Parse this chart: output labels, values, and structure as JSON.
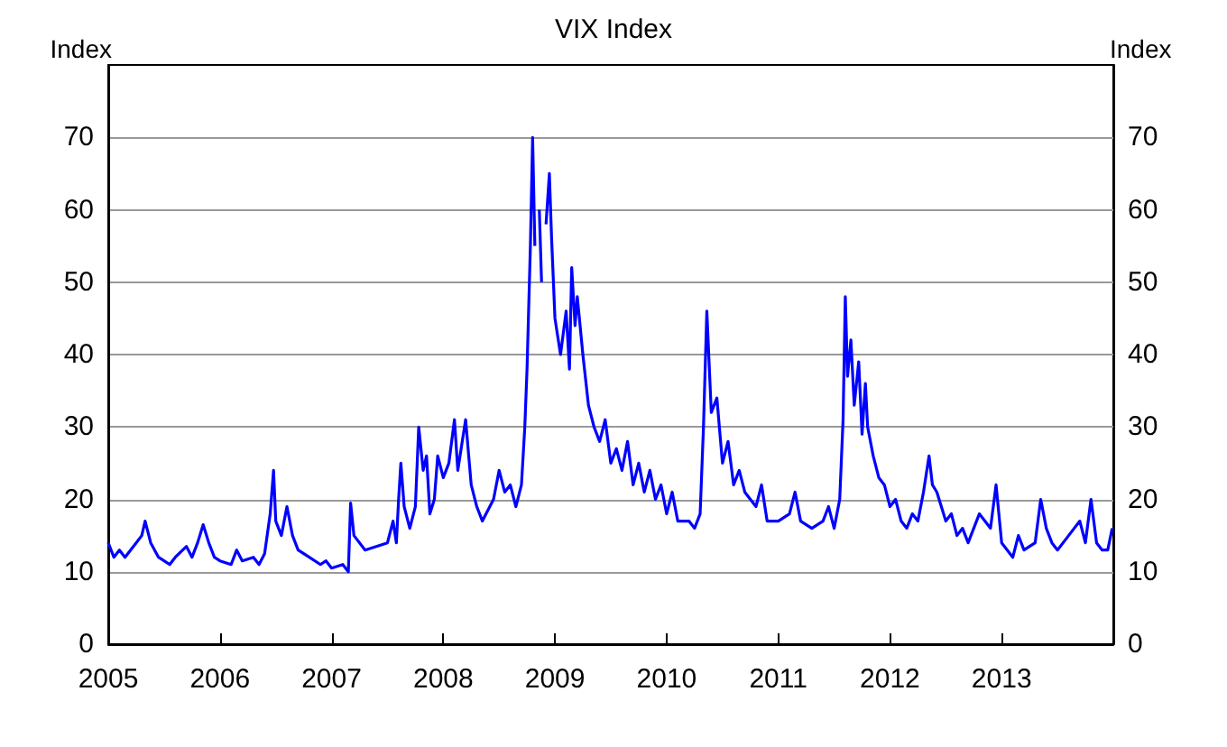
{
  "chart_data": {
    "type": "line",
    "title": "VIX Index",
    "ylabel": "Index",
    "y2label": "Index",
    "series": [
      {
        "color": "#0000ff",
        "x": [
          2005.0,
          2005.05,
          2005.1,
          2005.15,
          2005.2,
          2005.25,
          2005.3,
          2005.33,
          2005.38,
          2005.45,
          2005.5,
          2005.55,
          2005.6,
          2005.7,
          2005.75,
          2005.8,
          2005.85,
          2005.9,
          2005.95,
          2006.0,
          2006.1,
          2006.15,
          2006.2,
          2006.3,
          2006.35,
          2006.4,
          2006.45,
          2006.48,
          2006.5,
          2006.55,
          2006.6,
          2006.65,
          2006.7,
          2006.8,
          2006.9,
          2006.95,
          2007.0,
          2007.1,
          2007.15,
          2007.17,
          2007.2,
          2007.3,
          2007.4,
          2007.5,
          2007.55,
          2007.58,
          2007.6,
          2007.62,
          2007.65,
          2007.7,
          2007.75,
          2007.78,
          2007.82,
          2007.85,
          2007.88,
          2007.92,
          2007.95,
          2008.0,
          2008.05,
          2008.1,
          2008.13,
          2008.17,
          2008.2,
          2008.25,
          2008.3,
          2008.35,
          2008.45,
          2008.5,
          2008.55,
          2008.6,
          2008.65,
          2008.7,
          2008.73,
          2008.75,
          2008.78,
          2008.8,
          2008.82,
          2008.84,
          2008.86,
          2008.88,
          2008.9,
          2008.92,
          2008.95,
          2008.97,
          2009.0,
          2009.05,
          2009.1,
          2009.13,
          2009.15,
          2009.18,
          2009.2,
          2009.25,
          2009.3,
          2009.35,
          2009.4,
          2009.45,
          2009.5,
          2009.55,
          2009.6,
          2009.65,
          2009.7,
          2009.75,
          2009.8,
          2009.85,
          2009.9,
          2009.95,
          2010.0,
          2010.05,
          2010.1,
          2010.2,
          2010.25,
          2010.3,
          2010.33,
          2010.36,
          2010.4,
          2010.45,
          2010.5,
          2010.55,
          2010.6,
          2010.65,
          2010.7,
          2010.8,
          2010.85,
          2010.9,
          2011.0,
          2011.1,
          2011.15,
          2011.2,
          2011.3,
          2011.4,
          2011.45,
          2011.5,
          2011.55,
          2011.58,
          2011.6,
          2011.62,
          2011.65,
          2011.68,
          2011.72,
          2011.75,
          2011.78,
          2011.8,
          2011.85,
          2011.9,
          2011.95,
          2012.0,
          2012.05,
          2012.1,
          2012.15,
          2012.2,
          2012.25,
          2012.3,
          2012.35,
          2012.38,
          2012.42,
          2012.5,
          2012.55,
          2012.6,
          2012.65,
          2012.7,
          2012.8,
          2012.9,
          2012.95,
          2013.0,
          2013.05,
          2013.1,
          2013.15,
          2013.2,
          2013.3,
          2013.35,
          2013.4,
          2013.45,
          2013.5,
          2013.6,
          2013.7,
          2013.75,
          2013.8,
          2013.85,
          2013.9,
          2013.95,
          2013.99
        ],
        "values": [
          14,
          12,
          13,
          12,
          13,
          14,
          15,
          17,
          14,
          12,
          11.5,
          11,
          12,
          13.5,
          12,
          14,
          16.5,
          14,
          12,
          11.5,
          11,
          13,
          11.5,
          12,
          11,
          12.5,
          18,
          24,
          17,
          15,
          19,
          15,
          13,
          12,
          11,
          11.5,
          10.5,
          11,
          10,
          19.5,
          15,
          13,
          13.5,
          14,
          17,
          14,
          20,
          25,
          19,
          16,
          19,
          30,
          24,
          26,
          18,
          20,
          26,
          23,
          25,
          31,
          24,
          28,
          31,
          22,
          19,
          17,
          20,
          24,
          21,
          22,
          19,
          22,
          30,
          38,
          55,
          70,
          55,
          null,
          60,
          50,
          null,
          58,
          65,
          56,
          45,
          40,
          46,
          38,
          52,
          44,
          48,
          40,
          33,
          30,
          28,
          31,
          25,
          27,
          24,
          28,
          22,
          25,
          21,
          24,
          20,
          22,
          18,
          21,
          17,
          17,
          16,
          18,
          30,
          46,
          32,
          34,
          25,
          28,
          22,
          24,
          21,
          19,
          22,
          17,
          17,
          18,
          21,
          17,
          16,
          17,
          19,
          16,
          20,
          31,
          48,
          37,
          42,
          33,
          39,
          29,
          36,
          30,
          26,
          23,
          22,
          19,
          20,
          17,
          16,
          18,
          17,
          21,
          26,
          22,
          21,
          17,
          18,
          15,
          16,
          14,
          18,
          16,
          22,
          14,
          13,
          12,
          15,
          13,
          14,
          20,
          16,
          14,
          13,
          15,
          17,
          14,
          20,
          14,
          13,
          13,
          16
        ]
      }
    ],
    "xlim": [
      2005,
      2014
    ],
    "xticks": [
      2005,
      2006,
      2007,
      2008,
      2009,
      2010,
      2011,
      2012,
      2013
    ],
    "ylim": [
      0,
      80
    ],
    "yticks": [
      0,
      10,
      20,
      30,
      40,
      50,
      60,
      70
    ],
    "y2lim": [
      0,
      80
    ],
    "y2ticks": [
      0,
      10,
      20,
      30,
      40,
      50,
      60,
      70
    ],
    "grid": "y",
    "marker": "none"
  }
}
